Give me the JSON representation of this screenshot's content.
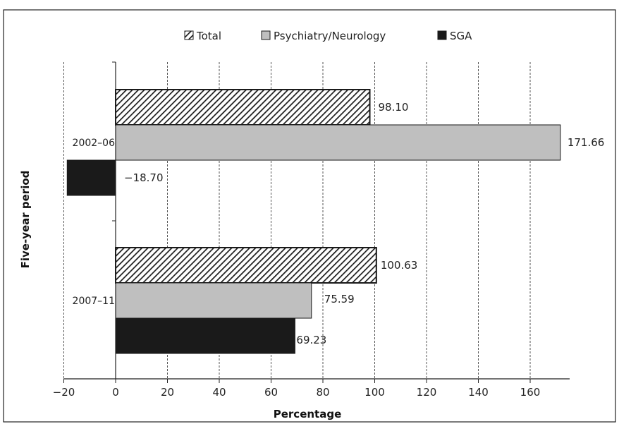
{
  "chart_data": {
    "type": "bar",
    "orientation": "horizontal",
    "categories": [
      "2002–06",
      "2007–11"
    ],
    "series": [
      {
        "name": "Total",
        "values": [
          98.1,
          100.63
        ],
        "labels": [
          "98.10",
          "100.63"
        ],
        "pattern": "hatch"
      },
      {
        "name": "Psychiatry/Neurology",
        "values": [
          171.66,
          75.59
        ],
        "labels": [
          "171.66",
          "75.59"
        ],
        "color": "#bfbfbf"
      },
      {
        "name": "SGA",
        "values": [
          -18.7,
          69.23
        ],
        "labels": [
          "−18.70",
          "69.23"
        ],
        "color": "#1a1a1a"
      }
    ],
    "xlabel": "Percentage",
    "ylabel": "Five-year period",
    "xlim": [
      -20,
      175
    ],
    "xticks": [
      -20,
      0,
      20,
      40,
      60,
      80,
      100,
      120,
      140,
      160
    ],
    "xtick_labels": [
      "−20",
      "0",
      "20",
      "40",
      "60",
      "80",
      "100",
      "120",
      "140",
      "160"
    ],
    "grid": "vertical-dashed",
    "legend": "top"
  }
}
